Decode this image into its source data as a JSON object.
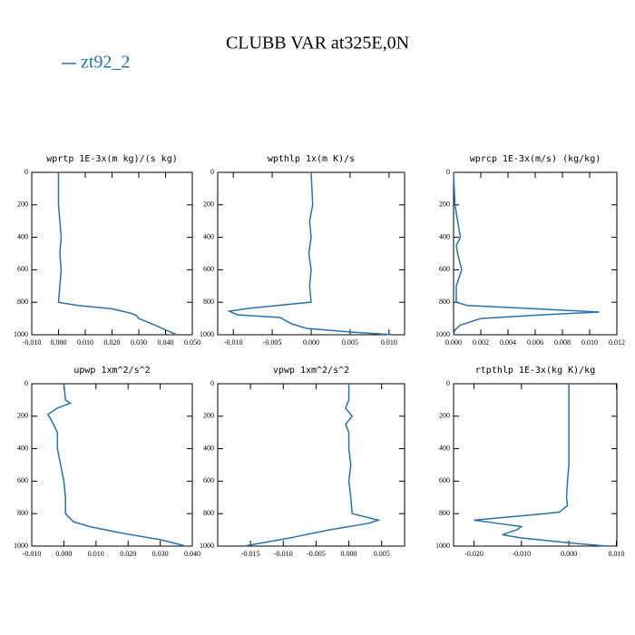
{
  "title": "CLUBB VAR at325E,0N",
  "chart_data": [
    {
      "type": "line",
      "title": "wprtp  1E-3x(m kg)/(s kg)",
      "y_inverted": true,
      "y": [
        0,
        200,
        400,
        500,
        600,
        700,
        800,
        820,
        840,
        866,
        880,
        900,
        940,
        970,
        1000
      ],
      "series": [
        {
          "name": "zt92_2",
          "color": "#2a72a8",
          "values": [
            0,
            0,
            0.001,
            0.0005,
            0.001,
            0.0005,
            0,
            0.0073,
            0.02,
            0.0266,
            0.029,
            0.03,
            0.036,
            0.04,
            0.0442
          ]
        }
      ],
      "xlim": [
        -0.01,
        0.05
      ],
      "xticks": [
        {
          "value": -0.01,
          "label": "-0.010"
        },
        {
          "value": 0,
          "label": "0.000"
        },
        {
          "value": 0.01,
          "label": "0.010"
        },
        {
          "value": 0.02,
          "label": "0.020"
        },
        {
          "value": 0.03,
          "label": "0.030"
        },
        {
          "value": 0.04,
          "label": "0.040"
        },
        {
          "value": 0.05,
          "label": "0.050"
        }
      ],
      "ylim": [
        0,
        1000
      ],
      "yticks": [
        0,
        200,
        400,
        600,
        800,
        1000
      ]
    },
    {
      "type": "line",
      "title": "wpthlp  1x(m K)/s",
      "y_inverted": true,
      "y": [
        0,
        200,
        300,
        400,
        500,
        600,
        700,
        799,
        838,
        855,
        877,
        894,
        933,
        961,
        983,
        1000
      ],
      "series": [
        {
          "name": "zt92_2",
          "color": "#2a72a8",
          "values": [
            0,
            0.0002,
            -0.0002,
            0,
            -0.0003,
            0,
            -0.0002,
            0,
            -0.0081,
            -0.0105,
            -0.0095,
            -0.004,
            -0.0025,
            -0.0006,
            0.005,
            0.0105
          ]
        }
      ],
      "xlim": [
        -0.012,
        0.012
      ],
      "xticks": [
        {
          "value": -0.01,
          "label": "-0.010"
        },
        {
          "value": -0.005,
          "label": "-0.005"
        },
        {
          "value": 0,
          "label": "0.000"
        },
        {
          "value": 0.005,
          "label": "0.005"
        },
        {
          "value": 0.01,
          "label": "0.010"
        }
      ],
      "ylim": [
        0,
        1000
      ],
      "yticks": [
        0,
        200,
        400,
        600,
        800,
        1000
      ]
    },
    {
      "type": "line",
      "title": "wprcp  1E-3x(m/s) (kg/kg)",
      "y_inverted": true,
      "y": [
        0,
        200,
        300,
        400,
        450,
        500,
        600,
        700,
        800,
        820,
        840,
        860,
        880,
        900,
        940,
        970,
        1000
      ],
      "series": [
        {
          "name": "zt92_2",
          "color": "#2a72a8",
          "values": [
            0,
            0.0001,
            0.0003,
            0.0005,
            0.0002,
            0.0003,
            0.0006,
            0.0002,
            0.0002,
            0.001,
            0.006,
            0.0107,
            0.006,
            0.002,
            0.0005,
            0.0001,
            0
          ]
        }
      ],
      "xlim": [
        0,
        0.012
      ],
      "xticks": [
        {
          "value": 0,
          "label": "0.000"
        },
        {
          "value": 0.002,
          "label": "0.002"
        },
        {
          "value": 0.004,
          "label": "0.004"
        },
        {
          "value": 0.006,
          "label": "0.006"
        },
        {
          "value": 0.008,
          "label": "0.008"
        },
        {
          "value": 0.01,
          "label": "0.010"
        },
        {
          "value": 0.012,
          "label": "0.012"
        }
      ],
      "ylim": [
        0,
        1000
      ],
      "yticks": [
        0,
        200,
        400,
        600,
        800,
        1000
      ]
    },
    {
      "type": "line",
      "title": "upwp  1xm^2/s^2",
      "y_inverted": true,
      "y": [
        0,
        100,
        120,
        150,
        190,
        220,
        300,
        400,
        500,
        600,
        700,
        800,
        850,
        880,
        920,
        960,
        1000
      ],
      "series": [
        {
          "name": "zt92_2",
          "color": "#2a72a8",
          "values": [
            0,
            0.0005,
            0.002,
            -0.002,
            -0.005,
            -0.004,
            -0.002,
            -0.002,
            -0.001,
            0,
            0.0005,
            0.0005,
            0.003,
            0.008,
            0.018,
            0.03,
            0.038
          ]
        }
      ],
      "xlim": [
        -0.01,
        0.04
      ],
      "xticks": [
        {
          "value": -0.01,
          "label": "-0.010"
        },
        {
          "value": 0,
          "label": "0.000"
        },
        {
          "value": 0.01,
          "label": "0.010"
        },
        {
          "value": 0.02,
          "label": "0.020"
        },
        {
          "value": 0.03,
          "label": "0.030"
        },
        {
          "value": 0.04,
          "label": "0.040"
        }
      ],
      "ylim": [
        0,
        1000
      ],
      "yticks": [
        0,
        200,
        400,
        600,
        800,
        1000
      ]
    },
    {
      "type": "line",
      "title": "vpwp  1xm^2/s^2",
      "y_inverted": true,
      "y": [
        0,
        100,
        150,
        200,
        250,
        300,
        400,
        500,
        600,
        700,
        800,
        840,
        860,
        900,
        950,
        1000
      ],
      "series": [
        {
          "name": "zt92_2",
          "color": "#2a72a8",
          "values": [
            0,
            0,
            -0.0005,
            0.0005,
            -0.0005,
            0,
            0,
            0.0003,
            0,
            0.0003,
            0.0005,
            0.0045,
            0.003,
            -0.003,
            -0.009,
            -0.016
          ]
        }
      ],
      "xlim": [
        -0.02,
        0.0085
      ],
      "xticks": [
        {
          "value": -0.015,
          "label": "-0.015"
        },
        {
          "value": -0.01,
          "label": "-0.010"
        },
        {
          "value": -0.005,
          "label": "-0.005"
        },
        {
          "value": 0,
          "label": "0.000"
        },
        {
          "value": 0.005,
          "label": "0.005"
        }
      ],
      "ylim": [
        0,
        1000
      ],
      "yticks": [
        0,
        200,
        400,
        600,
        800,
        1000
      ]
    },
    {
      "type": "line",
      "title": "rtpthlp  1E-3x(kg K)/kg",
      "y_inverted": true,
      "y": [
        0,
        500,
        600,
        700,
        750,
        790,
        800,
        840,
        860,
        880,
        900,
        930,
        950,
        980,
        1000
      ],
      "series": [
        {
          "name": "zt92_2",
          "color": "#2a72a8",
          "values": [
            0,
            0,
            -0.0003,
            -0.0005,
            -0.0003,
            -0.002,
            -0.005,
            -0.02,
            -0.015,
            -0.01,
            -0.011,
            -0.014,
            -0.01,
            0,
            0.008
          ]
        }
      ],
      "xlim": [
        -0.0243,
        0.0101
      ],
      "xticks": [
        {
          "value": -0.02,
          "label": "-0.020"
        },
        {
          "value": -0.01,
          "label": "-0.010"
        },
        {
          "value": 0,
          "label": "0.000"
        },
        {
          "value": 0.01,
          "label": "0.010"
        }
      ],
      "ylim": [
        0,
        1000
      ],
      "yticks": [
        0,
        200,
        400,
        600,
        800,
        1000
      ]
    }
  ]
}
